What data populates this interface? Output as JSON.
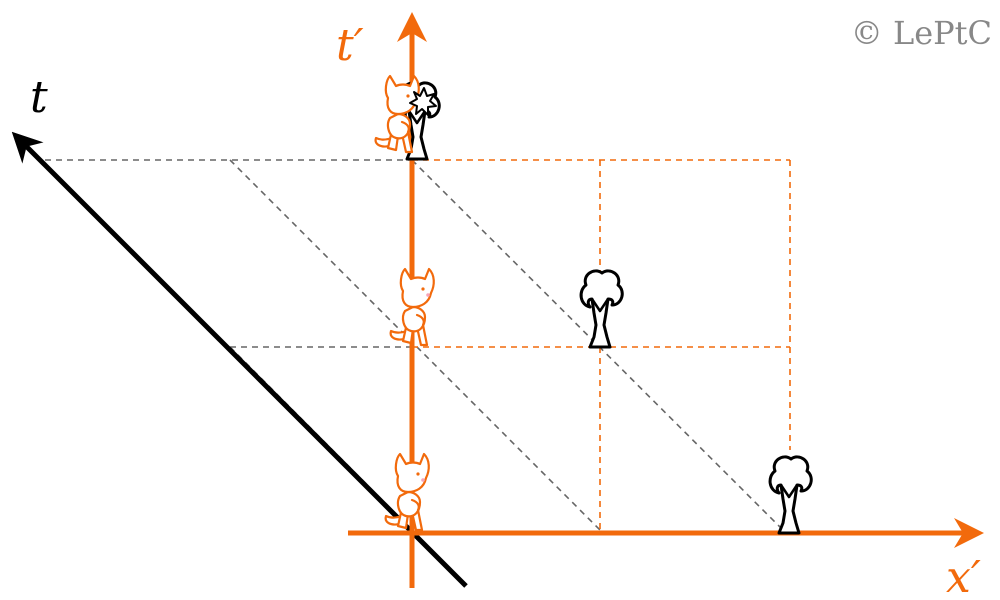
{
  "labels": {
    "t_prime": "t′",
    "t": "t",
    "x_prime": "x′",
    "copyright": "© LePtC"
  },
  "colors": {
    "accent": "#f26a0c",
    "black": "#000000",
    "gray_dash": "#666666",
    "copyright_gray": "#888888"
  },
  "figures": {
    "cat_icon": "walking-cat",
    "tree_icon": "tree",
    "impact_icon": "collision-spark"
  }
}
